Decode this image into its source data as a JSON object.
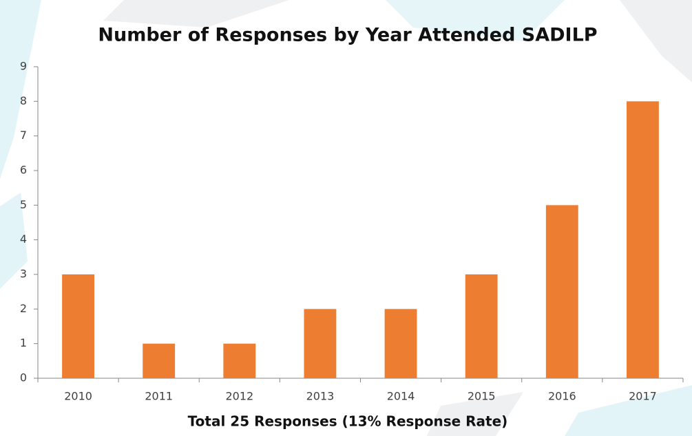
{
  "chart_data": {
    "type": "bar",
    "title": "Number of Responses by Year Attended SADILP",
    "x_label": "Total 25 Responses (13% Response Rate)",
    "categories": [
      "2010",
      "2011",
      "2012",
      "2013",
      "2014",
      "2015",
      "2016",
      "2017"
    ],
    "values": [
      3,
      1,
      1,
      2,
      2,
      3,
      5,
      8
    ],
    "color": "#ed7d31",
    "ylim": [
      0,
      9
    ],
    "yticks": [
      0,
      1,
      2,
      3,
      4,
      5,
      6,
      7,
      8,
      9
    ],
    "grid": false
  }
}
